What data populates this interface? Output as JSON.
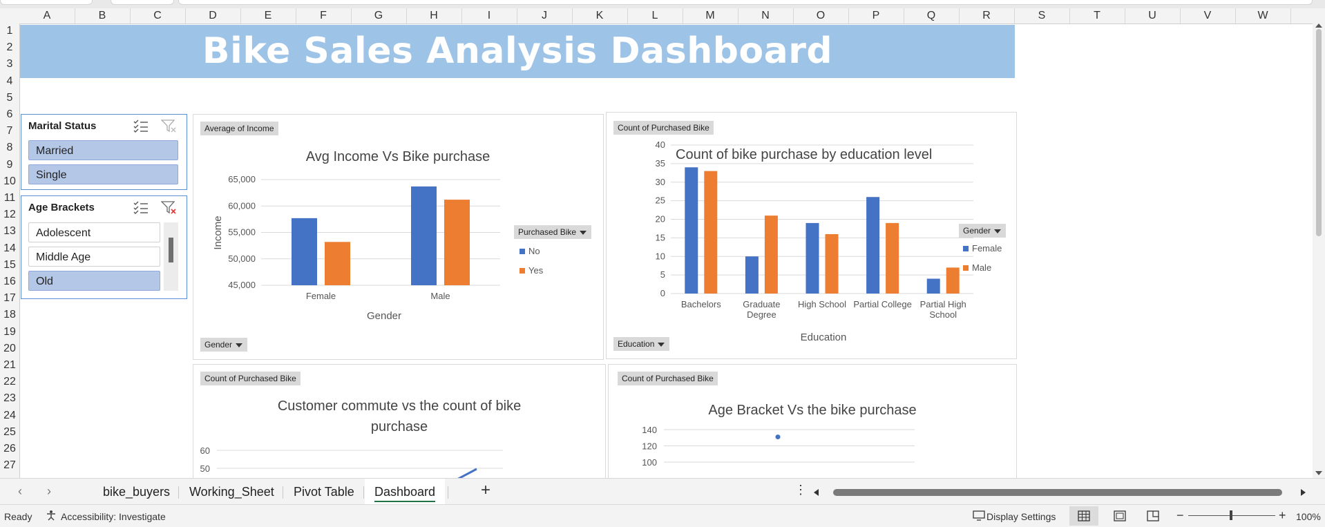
{
  "columns": [
    "A",
    "B",
    "C",
    "D",
    "E",
    "F",
    "G",
    "H",
    "I",
    "J",
    "K",
    "L",
    "M",
    "N",
    "O",
    "P",
    "Q",
    "R",
    "S",
    "T",
    "U",
    "V",
    "W"
  ],
  "rows": [
    "1",
    "2",
    "3",
    "4",
    "5",
    "6",
    "7",
    "8",
    "9",
    "10",
    "11",
    "12",
    "13",
    "14",
    "15",
    "16",
    "17",
    "18",
    "19",
    "20",
    "21",
    "22",
    "23",
    "24",
    "25",
    "26",
    "27"
  ],
  "banner_title": "Bike Sales Analysis Dashboard",
  "slicers": {
    "marital": {
      "title": "Marital Status",
      "items": [
        {
          "label": "Married",
          "selected": true
        },
        {
          "label": "Single",
          "selected": true
        }
      ]
    },
    "age": {
      "title": "Age Brackets",
      "items": [
        {
          "label": "Adolescent",
          "selected": false
        },
        {
          "label": "Middle Age",
          "selected": false
        },
        {
          "label": "Old",
          "selected": true
        }
      ]
    }
  },
  "chart_data": [
    {
      "type": "bar",
      "field_button": "Average of Income",
      "axis_field_button": "Gender",
      "legend_field_button": "Purchased Bike",
      "title": "Avg Income Vs Bike purchase",
      "xlabel": "Gender",
      "ylabel": "Income",
      "categories": [
        "Female",
        "Male"
      ],
      "series": [
        {
          "name": "No",
          "color": "#4472c4",
          "values": [
            57700,
            63700
          ]
        },
        {
          "name": "Yes",
          "color": "#ed7d31",
          "values": [
            53200,
            61200
          ]
        }
      ],
      "ylim": [
        45000,
        65000
      ],
      "yticks": [
        "65,000",
        "60,000",
        "55,000",
        "50,000",
        "45,000"
      ],
      "ytick_values": [
        65000,
        60000,
        55000,
        50000,
        45000
      ],
      "legend_position": "right"
    },
    {
      "type": "bar",
      "field_button": "Count of Purchased Bike",
      "axis_field_button": "Education",
      "legend_field_button": "Gender",
      "title": "Count of bike purchase by education level",
      "xlabel": "Education",
      "ylabel": "",
      "categories": [
        "Bachelors",
        "Graduate Degree",
        "High School",
        "Partial College",
        "Partial High School"
      ],
      "category_lines": [
        [
          "Bachelors"
        ],
        [
          "Graduate",
          "Degree"
        ],
        [
          "High School"
        ],
        [
          "Partial College"
        ],
        [
          "Partial High",
          "School"
        ]
      ],
      "series": [
        {
          "name": "Female",
          "color": "#4472c4",
          "values": [
            34,
            10,
            19,
            26,
            4
          ]
        },
        {
          "name": "Male",
          "color": "#ed7d31",
          "values": [
            33,
            21,
            16,
            19,
            7
          ]
        }
      ],
      "ylim": [
        0,
        40
      ],
      "yticks": [
        "40",
        "35",
        "30",
        "25",
        "20",
        "15",
        "10",
        "5",
        "0"
      ],
      "ytick_values": [
        40,
        35,
        30,
        25,
        20,
        15,
        10,
        5,
        0
      ],
      "legend_position": "right"
    },
    {
      "type": "line",
      "field_button": "Count of Purchased Bike",
      "title": "Customer commute vs the count of bike purchase",
      "title_lines": [
        "Customer commute vs the count of bike",
        "purchase"
      ],
      "yticks": [
        "60",
        "50"
      ],
      "ytick_values": [
        60,
        50
      ],
      "ylim": [
        40,
        60
      ],
      "series": [
        {
          "name": "",
          "color": "#4472c4",
          "values": []
        }
      ]
    },
    {
      "type": "line",
      "field_button": "Count of Purchased Bike",
      "title": "Age Bracket Vs the bike purchase",
      "yticks": [
        "140",
        "120",
        "100"
      ],
      "ytick_values": [
        140,
        120,
        100
      ],
      "ylim": [
        100,
        140
      ],
      "series": [
        {
          "name": "",
          "color": "#4472c4",
          "values": [
            131
          ]
        }
      ]
    }
  ],
  "sheet_tabs": [
    {
      "label": "bike_buyers",
      "active": false
    },
    {
      "label": "Working_Sheet",
      "active": false
    },
    {
      "label": "Pivot Table",
      "active": false
    },
    {
      "label": "Dashboard",
      "active": true
    }
  ],
  "add_sheet_label": "+",
  "more_label": "⋮",
  "status": {
    "ready": "Ready",
    "accessibility": "Accessibility: Investigate",
    "display_settings": "Display Settings",
    "zoom": "100%",
    "zoom_minus": "−",
    "zoom_plus": "+"
  }
}
